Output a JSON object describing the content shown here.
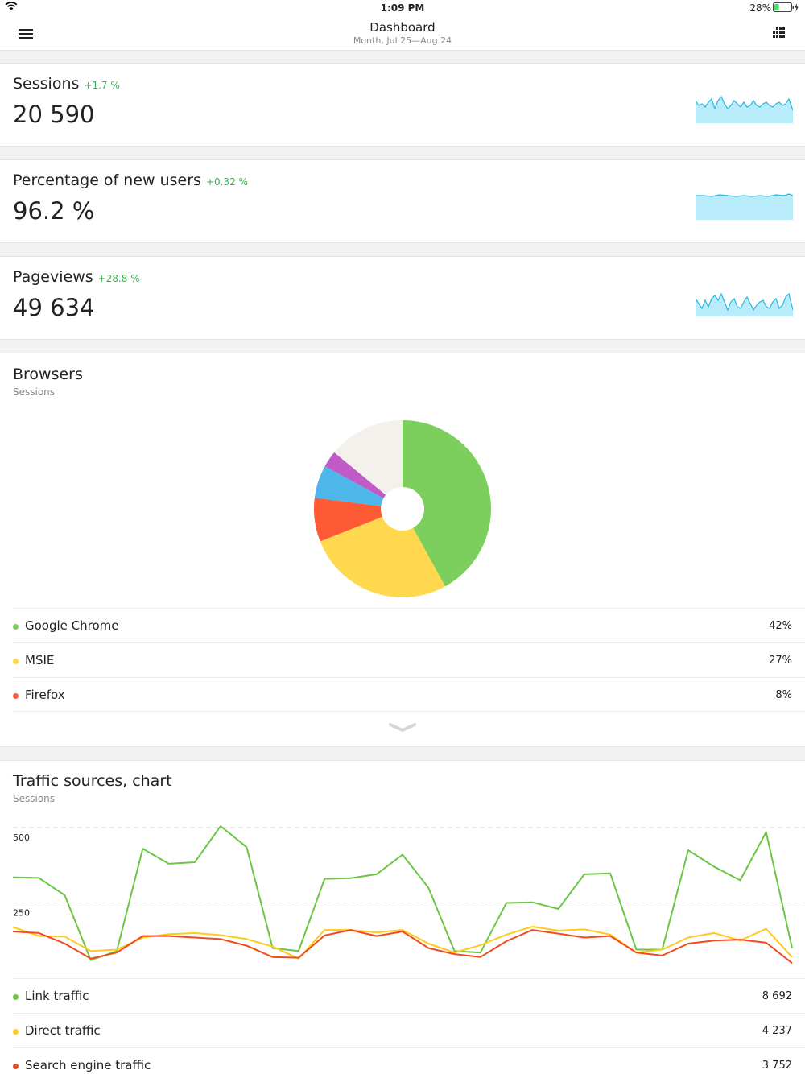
{
  "status_bar": {
    "time": "1:09 PM",
    "battery_percent": "28%",
    "battery_level": 0.28
  },
  "nav": {
    "title": "Dashboard",
    "subtitle": "Month, Jul 25—Aug 24",
    "menu_icon": "hamburger-menu-icon",
    "grid_icon": "grid-dots-icon"
  },
  "metrics": [
    {
      "title": "Sessions",
      "delta": "+1.7 %",
      "value": "20 590"
    },
    {
      "title": "Percentage of new users",
      "delta": "+0.32 %",
      "value": "96.2 %"
    },
    {
      "title": "Pageviews",
      "delta": "+28.8 %",
      "value": "49 634"
    }
  ],
  "browsers": {
    "title": "Browsers",
    "subtitle": "Sessions",
    "legend": [
      {
        "name": "Google Chrome",
        "value": "42%",
        "color": "#7ccf5c"
      },
      {
        "name": "MSIE",
        "value": "27%",
        "color": "#ffd84f"
      },
      {
        "name": "Firefox",
        "value": "8%",
        "color": "#ff5a36"
      }
    ],
    "expand_icon": "chevron-down-icon",
    "chart_data": {
      "type": "pie",
      "slices": [
        {
          "value": 42,
          "color": "#7ccf5c"
        },
        {
          "value": 27,
          "color": "#ffd84f"
        },
        {
          "value": 8,
          "color": "#ff5a36"
        },
        {
          "value": 6,
          "color": "#4db6ea"
        },
        {
          "value": 3,
          "color": "#c05bc7"
        },
        {
          "value": 14,
          "color": "#f4f1ec"
        }
      ]
    }
  },
  "traffic": {
    "title": "Traffic sources, chart",
    "subtitle": "Sessions",
    "legend": [
      {
        "name": "Link traffic",
        "value": "8 692",
        "color": "#6cc644"
      },
      {
        "name": "Direct traffic",
        "value": "4 237",
        "color": "#ffca1e"
      },
      {
        "name": "Search engine traffic",
        "value": "3 752",
        "color": "#f24a1c"
      }
    ],
    "chart_data": {
      "type": "line",
      "ylim": [
        0,
        540
      ],
      "yticks": [
        250,
        500
      ],
      "ytick_labels": [
        "250",
        "500"
      ],
      "grid": true,
      "series": [
        {
          "name": "Link traffic",
          "color": "#6cc644",
          "values": [
            335,
            333,
            275,
            60,
            90,
            430,
            380,
            385,
            505,
            435,
            100,
            90,
            330,
            332,
            345,
            410,
            300,
            90,
            85,
            250,
            252,
            230,
            345,
            348,
            95,
            95,
            425,
            370,
            325,
            485,
            100
          ]
        },
        {
          "name": "Direct traffic",
          "color": "#ffca1e",
          "values": [
            170,
            140,
            138,
            90,
            95,
            135,
            146,
            150,
            143,
            130,
            105,
            65,
            160,
            160,
            152,
            160,
            115,
            85,
            110,
            145,
            171,
            158,
            162,
            145,
            85,
            95,
            135,
            150,
            125,
            164,
            70
          ]
        },
        {
          "name": "Search engine traffic",
          "color": "#f24a1c",
          "values": [
            155,
            150,
            115,
            65,
            85,
            140,
            140,
            135,
            130,
            108,
            70,
            68,
            142,
            160,
            140,
            155,
            100,
            80,
            70,
            123,
            160,
            148,
            135,
            140,
            85,
            75,
            115,
            125,
            128,
            118,
            50
          ]
        }
      ]
    }
  }
}
